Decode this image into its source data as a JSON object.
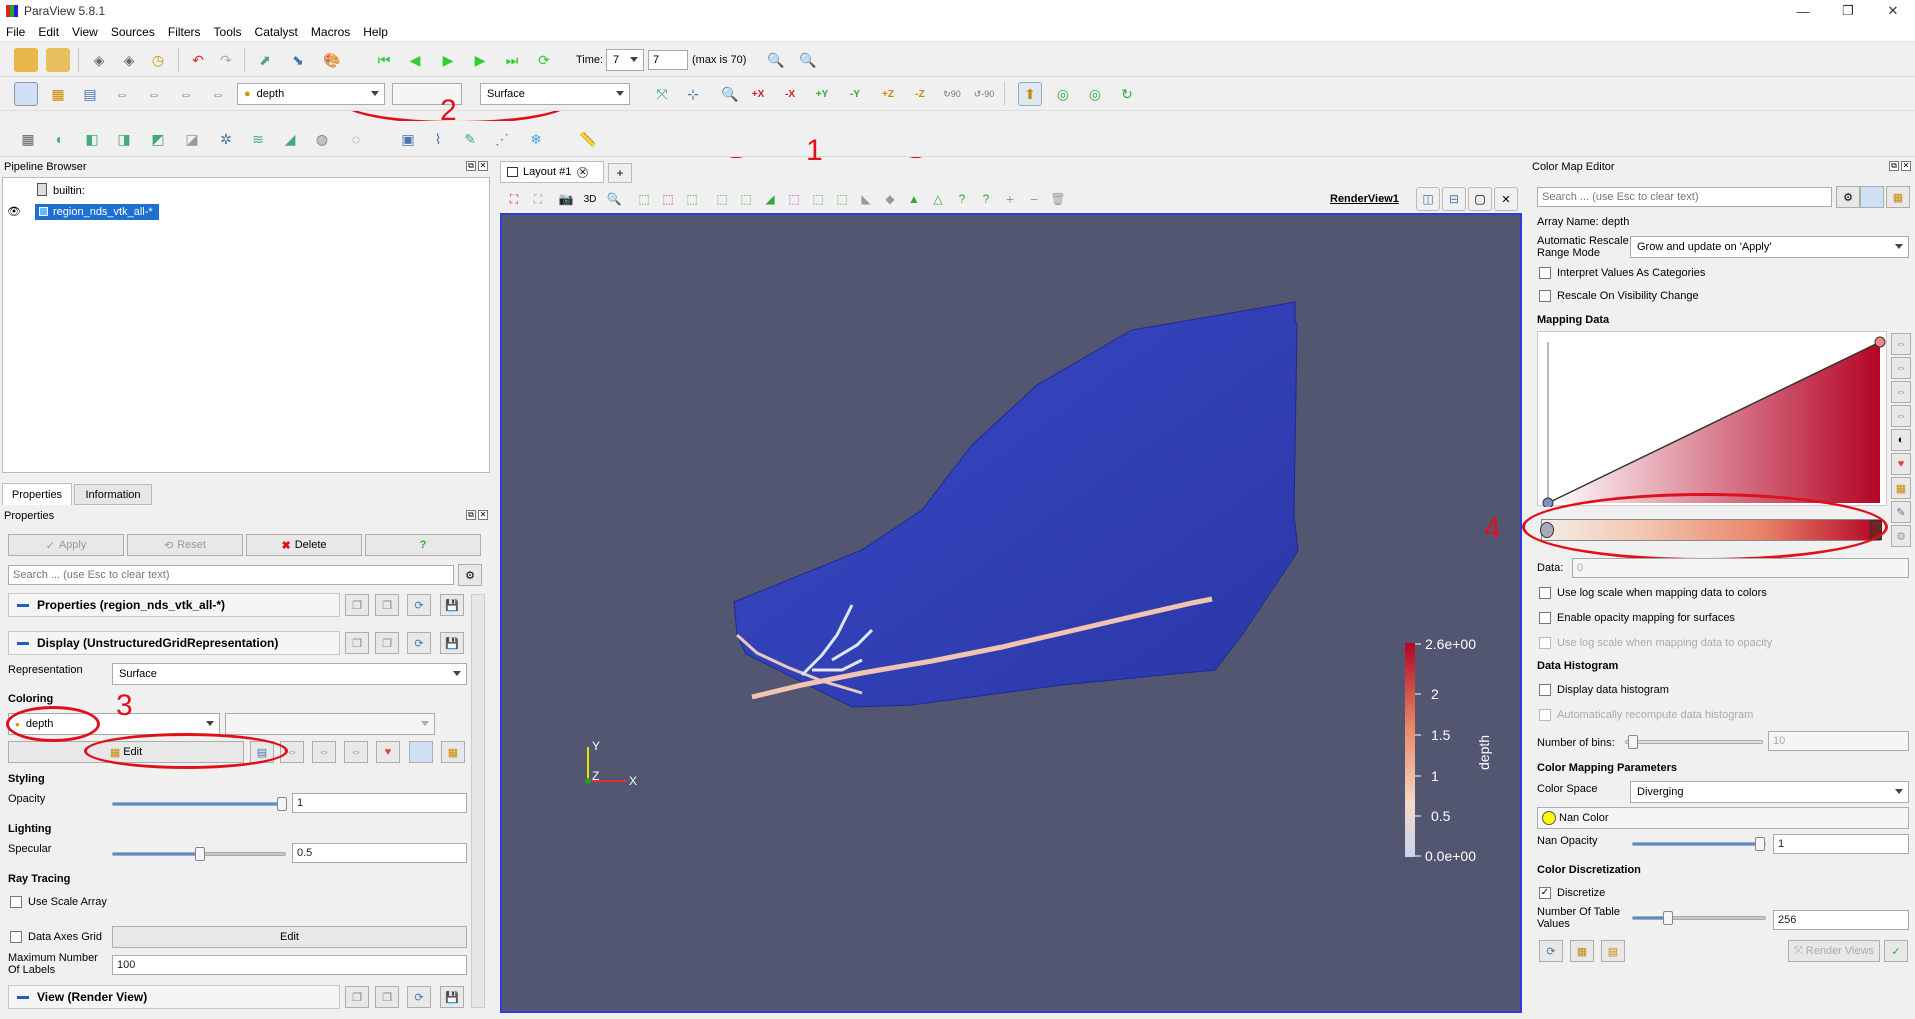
{
  "window": {
    "title": "ParaView 5.8.1",
    "min": "—",
    "max": "❐",
    "close": "✕"
  },
  "menu": [
    "File",
    "Edit",
    "View",
    "Sources",
    "Filters",
    "Tools",
    "Catalyst",
    "Macros",
    "Help"
  ],
  "time": {
    "label": "Time:",
    "value": "7",
    "index": "7",
    "max_text": "(max is 70)"
  },
  "toolbar2": {
    "array_combo": "depth",
    "component_combo": "",
    "representation_combo": "Surface"
  },
  "annotations": [
    "1",
    "2",
    "3",
    "4"
  ],
  "pipeline": {
    "title": "Pipeline Browser",
    "root": "builtin:",
    "source": "region_nds_vtk_all-*"
  },
  "tabs": {
    "properties": "Properties",
    "information": "Information"
  },
  "properties": {
    "title": "Properties",
    "apply": "Apply",
    "reset": "Reset",
    "delete": "Delete",
    "help": "?",
    "search_placeholder": "Search ... (use Esc to clear text)",
    "section_props": "Properties (region_nds_vtk_all-*)",
    "section_display": "Display (UnstructuredGridRepresentation)",
    "representation_label": "Representation",
    "representation_value": "Surface",
    "coloring_label": "Coloring",
    "coloring_value": "depth",
    "coloring_edit": "Edit",
    "styling_label": "Styling",
    "opacity_label": "Opacity",
    "opacity_value": "1",
    "lighting_label": "Lighting",
    "specular_label": "Specular",
    "specular_value": "0.5",
    "raytracing_label": "Ray Tracing",
    "use_scale_array": "Use Scale Array",
    "data_axes_grid": "Data Axes Grid",
    "data_axes_edit": "Edit",
    "max_labels_label": "Maximum Number Of Labels",
    "max_labels_value": "100",
    "section_view": "View (Render View)"
  },
  "layout": {
    "tab": "Layout #1",
    "add": "+",
    "view_name": "RenderView1",
    "mode3d": "3D"
  },
  "scalar_bar": {
    "title": "depth",
    "labels": [
      "2.6e+00",
      "2",
      "1.5",
      "1",
      "0.5",
      "0.0e+00"
    ]
  },
  "axes": {
    "y": "Y",
    "z": "Z",
    "x": "X"
  },
  "cme": {
    "title": "Color Map Editor",
    "search_placeholder": "Search ... (use Esc to clear text)",
    "array_name": "Array Name: depth",
    "rescale_label": "Automatic Rescale Range Mode",
    "rescale_value": "Grow and update on 'Apply'",
    "interpret_categories": "Interpret Values As Categories",
    "rescale_visibility": "Rescale On Visibility Change",
    "mapping_data": "Mapping Data",
    "data_label": "Data:",
    "data_value": "0",
    "log_scale_colors": "Use log scale when mapping data to colors",
    "enable_opacity": "Enable opacity mapping for surfaces",
    "log_scale_opacity": "Use log scale when mapping data to opacity",
    "histogram_title": "Data Histogram",
    "display_histogram": "Display data histogram",
    "auto_recompute": "Automatically recompute data histogram",
    "bins_label": "Number of bins:",
    "bins_value": "10",
    "params_title": "Color Mapping Parameters",
    "color_space_label": "Color Space",
    "color_space_value": "Diverging",
    "nan_color": "Nan Color",
    "nan_opacity_label": "Nan Opacity",
    "nan_opacity_value": "1",
    "discretization_title": "Color Discretization",
    "discretize": "Discretize",
    "table_values_label": "Number Of Table Values",
    "table_values_value": "256",
    "render_views": "Render Views"
  },
  "colors": {
    "accent": "#1f5fbf",
    "annotation": "#e0101a",
    "viewport_bg": "#525670",
    "mesh": "#2f3fb5",
    "cmap_high": "#b40426",
    "cmap_low": "#f7f3f0"
  }
}
